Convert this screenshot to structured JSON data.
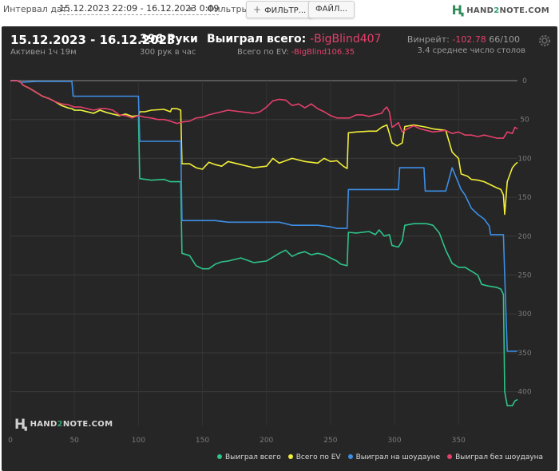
{
  "filters": {
    "interval_label": "Интервал дат:",
    "interval_value": "15.12.2023 22:09 - 16.12.2023 0:09",
    "filters_label": "Фильтры:",
    "filter_button": "ФИЛЬТР...",
    "file_button": "ФАЙЛ...",
    "brand_left": "HAND",
    "brand_two": "2",
    "brand_right": "NOTE.COM"
  },
  "summary": {
    "dates": "15.12.2023 - 16.12.2023",
    "active": "Активен 1ч 19м",
    "hands": "396 Руки",
    "per_hour": "300 рук в час",
    "won_label": "Выиграл всего:",
    "won_value": "-BigBlind407",
    "ev_label": "Всего по EV:",
    "ev_value": "-BigBlind106.35",
    "winrate_label": "Винрейт:",
    "winrate_value": "-102.78",
    "winrate_hands": "66/100",
    "avg_tables": "3.4 среднее число столов"
  },
  "watermark": {
    "left": "HAND",
    "two": "2",
    "right": "NOTE.COM"
  },
  "colors": {
    "panel": "#262626",
    "won": "#2ec48a",
    "ev": "#f2ef38",
    "showdown": "#3d8fe6",
    "nonshowdown": "#e4406b"
  },
  "chart_data": {
    "type": "line",
    "title": "",
    "xlabel": "",
    "ylabel": "",
    "xlim": [
      0,
      396
    ],
    "ylim": [
      -425,
      0
    ],
    "y_inverted_display": true,
    "x_ticks": [
      0,
      50,
      100,
      150,
      200,
      250,
      300,
      350
    ],
    "y_ticks": [
      0,
      50,
      100,
      150,
      200,
      250,
      300,
      350,
      400
    ],
    "legend_position": "bottom-right",
    "series": [
      {
        "name": "Выиграл всего",
        "color": "#2ec48a",
        "points": [
          [
            0,
            0
          ],
          [
            5,
            0
          ],
          [
            8,
            -2
          ],
          [
            10,
            -6
          ],
          [
            15,
            -10
          ],
          [
            20,
            -15
          ],
          [
            25,
            -20
          ],
          [
            30,
            -23
          ],
          [
            35,
            -27
          ],
          [
            40,
            -32
          ],
          [
            45,
            -35
          ],
          [
            48,
            -36
          ],
          [
            50,
            -38
          ],
          [
            55,
            -38
          ],
          [
            60,
            -40
          ],
          [
            65,
            -42
          ],
          [
            70,
            -38
          ],
          [
            75,
            -41
          ],
          [
            80,
            -43
          ],
          [
            85,
            -45
          ],
          [
            90,
            -43
          ],
          [
            95,
            -46
          ],
          [
            100,
            -45
          ],
          [
            101,
            -126
          ],
          [
            110,
            -128
          ],
          [
            120,
            -127
          ],
          [
            125,
            -130
          ],
          [
            126,
            -130
          ],
          [
            133,
            -130
          ],
          [
            134,
            -222
          ],
          [
            140,
            -225
          ],
          [
            145,
            -238
          ],
          [
            150,
            -242
          ],
          [
            155,
            -242
          ],
          [
            160,
            -236
          ],
          [
            165,
            -233
          ],
          [
            170,
            -232
          ],
          [
            180,
            -228
          ],
          [
            190,
            -234
          ],
          [
            200,
            -232
          ],
          [
            210,
            -222
          ],
          [
            215,
            -218
          ],
          [
            220,
            -226
          ],
          [
            225,
            -222
          ],
          [
            230,
            -220
          ],
          [
            235,
            -224
          ],
          [
            240,
            -222
          ],
          [
            245,
            -224
          ],
          [
            250,
            -228
          ],
          [
            255,
            -232
          ],
          [
            258,
            -236
          ],
          [
            263,
            -238
          ],
          [
            264,
            -195
          ],
          [
            270,
            -196
          ],
          [
            280,
            -194
          ],
          [
            285,
            -198
          ],
          [
            288,
            -192
          ],
          [
            292,
            -200
          ],
          [
            296,
            -198
          ],
          [
            298,
            -212
          ],
          [
            303,
            -214
          ],
          [
            306,
            -206
          ],
          [
            308,
            -186
          ],
          [
            315,
            -184
          ],
          [
            325,
            -184
          ],
          [
            330,
            -186
          ],
          [
            335,
            -196
          ],
          [
            340,
            -218
          ],
          [
            345,
            -235
          ],
          [
            350,
            -240
          ],
          [
            355,
            -240
          ],
          [
            360,
            -245
          ],
          [
            365,
            -250
          ],
          [
            368,
            -262
          ],
          [
            373,
            -264
          ],
          [
            380,
            -266
          ],
          [
            383,
            -268
          ],
          [
            385,
            -275
          ],
          [
            386,
            -400
          ],
          [
            388,
            -418
          ],
          [
            392,
            -418
          ],
          [
            394,
            -412
          ],
          [
            396,
            -410
          ]
        ]
      },
      {
        "name": "Всего по EV",
        "color": "#f2ef38",
        "points": [
          [
            0,
            0
          ],
          [
            5,
            0
          ],
          [
            8,
            -2
          ],
          [
            10,
            -6
          ],
          [
            15,
            -10
          ],
          [
            20,
            -15
          ],
          [
            25,
            -20
          ],
          [
            30,
            -23
          ],
          [
            35,
            -27
          ],
          [
            40,
            -32
          ],
          [
            45,
            -35
          ],
          [
            48,
            -36
          ],
          [
            50,
            -38
          ],
          [
            55,
            -38
          ],
          [
            60,
            -40
          ],
          [
            65,
            -42
          ],
          [
            70,
            -38
          ],
          [
            75,
            -41
          ],
          [
            80,
            -43
          ],
          [
            85,
            -45
          ],
          [
            90,
            -43
          ],
          [
            95,
            -46
          ],
          [
            100,
            -45
          ],
          [
            101,
            -40
          ],
          [
            105,
            -40
          ],
          [
            110,
            -38
          ],
          [
            120,
            -37
          ],
          [
            125,
            -40
          ],
          [
            126,
            -36
          ],
          [
            130,
            -36
          ],
          [
            133,
            -38
          ],
          [
            134,
            -107
          ],
          [
            140,
            -107
          ],
          [
            145,
            -112
          ],
          [
            150,
            -114
          ],
          [
            155,
            -105
          ],
          [
            160,
            -108
          ],
          [
            165,
            -110
          ],
          [
            170,
            -104
          ],
          [
            180,
            -108
          ],
          [
            190,
            -112
          ],
          [
            200,
            -110
          ],
          [
            205,
            -100
          ],
          [
            210,
            -106
          ],
          [
            220,
            -100
          ],
          [
            230,
            -104
          ],
          [
            240,
            -106
          ],
          [
            245,
            -100
          ],
          [
            250,
            -104
          ],
          [
            255,
            -103
          ],
          [
            260,
            -110
          ],
          [
            263,
            -113
          ],
          [
            264,
            -67
          ],
          [
            270,
            -66
          ],
          [
            280,
            -65
          ],
          [
            286,
            -65
          ],
          [
            290,
            -60
          ],
          [
            294,
            -57
          ],
          [
            296,
            -68
          ],
          [
            298,
            -80
          ],
          [
            302,
            -84
          ],
          [
            306,
            -80
          ],
          [
            308,
            -59
          ],
          [
            315,
            -57
          ],
          [
            325,
            -60
          ],
          [
            330,
            -62
          ],
          [
            340,
            -64
          ],
          [
            345,
            -92
          ],
          [
            350,
            -100
          ],
          [
            352,
            -120
          ],
          [
            357,
            -123
          ],
          [
            360,
            -127
          ],
          [
            365,
            -128
          ],
          [
            370,
            -130
          ],
          [
            375,
            -134
          ],
          [
            380,
            -138
          ],
          [
            383,
            -140
          ],
          [
            385,
            -147
          ],
          [
            386,
            -172
          ],
          [
            388,
            -130
          ],
          [
            390,
            -121
          ],
          [
            392,
            -112
          ],
          [
            394,
            -108
          ],
          [
            396,
            -105
          ]
        ]
      },
      {
        "name": "Выиграл на шоудауне",
        "color": "#3d8fe6",
        "points": [
          [
            0,
            0
          ],
          [
            5,
            0
          ],
          [
            8,
            -2
          ],
          [
            10,
            -2
          ],
          [
            20,
            -1
          ],
          [
            30,
            -1
          ],
          [
            48,
            -1
          ],
          [
            49,
            -20
          ],
          [
            60,
            -20
          ],
          [
            70,
            -20
          ],
          [
            100,
            -20
          ],
          [
            101,
            -78
          ],
          [
            110,
            -78
          ],
          [
            120,
            -78
          ],
          [
            133,
            -78
          ],
          [
            134,
            -180
          ],
          [
            150,
            -180
          ],
          [
            160,
            -180
          ],
          [
            170,
            -182
          ],
          [
            180,
            -182
          ],
          [
            190,
            -182
          ],
          [
            200,
            -182
          ],
          [
            210,
            -182
          ],
          [
            220,
            -186
          ],
          [
            230,
            -186
          ],
          [
            240,
            -186
          ],
          [
            250,
            -188
          ],
          [
            255,
            -190
          ],
          [
            263,
            -190
          ],
          [
            264,
            -140
          ],
          [
            270,
            -140
          ],
          [
            280,
            -140
          ],
          [
            290,
            -140
          ],
          [
            303,
            -140
          ],
          [
            304,
            -112
          ],
          [
            310,
            -112
          ],
          [
            320,
            -112
          ],
          [
            323,
            -112
          ],
          [
            324,
            -142
          ],
          [
            330,
            -142
          ],
          [
            340,
            -142
          ],
          [
            345,
            -112
          ],
          [
            350,
            -132
          ],
          [
            352,
            -140
          ],
          [
            355,
            -147
          ],
          [
            360,
            -164
          ],
          [
            365,
            -172
          ],
          [
            370,
            -178
          ],
          [
            374,
            -187
          ],
          [
            375,
            -198
          ],
          [
            380,
            -198
          ],
          [
            385,
            -198
          ],
          [
            386,
            -250
          ],
          [
            388,
            -348
          ],
          [
            396,
            -348
          ]
        ]
      },
      {
        "name": "Выиграл без шоудауна",
        "color": "#e4406b",
        "points": [
          [
            0,
            0
          ],
          [
            5,
            0
          ],
          [
            8,
            -2
          ],
          [
            10,
            -6
          ],
          [
            15,
            -10
          ],
          [
            20,
            -15
          ],
          [
            25,
            -20
          ],
          [
            30,
            -23
          ],
          [
            35,
            -27
          ],
          [
            40,
            -30
          ],
          [
            45,
            -31
          ],
          [
            50,
            -34
          ],
          [
            55,
            -34
          ],
          [
            60,
            -36
          ],
          [
            65,
            -38
          ],
          [
            70,
            -36
          ],
          [
            75,
            -36
          ],
          [
            80,
            -38
          ],
          [
            85,
            -44
          ],
          [
            90,
            -45
          ],
          [
            95,
            -48
          ],
          [
            100,
            -45
          ],
          [
            105,
            -47
          ],
          [
            110,
            -48
          ],
          [
            115,
            -50
          ],
          [
            120,
            -50
          ],
          [
            125,
            -52
          ],
          [
            130,
            -55
          ],
          [
            135,
            -53
          ],
          [
            140,
            -52
          ],
          [
            145,
            -48
          ],
          [
            150,
            -47
          ],
          [
            155,
            -44
          ],
          [
            160,
            -42
          ],
          [
            165,
            -40
          ],
          [
            170,
            -38
          ],
          [
            180,
            -40
          ],
          [
            190,
            -42
          ],
          [
            195,
            -40
          ],
          [
            200,
            -34
          ],
          [
            205,
            -26
          ],
          [
            210,
            -24
          ],
          [
            215,
            -25
          ],
          [
            220,
            -32
          ],
          [
            225,
            -30
          ],
          [
            230,
            -35
          ],
          [
            235,
            -30
          ],
          [
            240,
            -36
          ],
          [
            245,
            -40
          ],
          [
            250,
            -45
          ],
          [
            255,
            -48
          ],
          [
            260,
            -48
          ],
          [
            265,
            -48
          ],
          [
            270,
            -44
          ],
          [
            275,
            -44
          ],
          [
            280,
            -46
          ],
          [
            285,
            -44
          ],
          [
            290,
            -42
          ],
          [
            292,
            -37
          ],
          [
            294,
            -34
          ],
          [
            296,
            -40
          ],
          [
            298,
            -60
          ],
          [
            300,
            -58
          ],
          [
            303,
            -54
          ],
          [
            306,
            -66
          ],
          [
            310,
            -62
          ],
          [
            315,
            -58
          ],
          [
            320,
            -62
          ],
          [
            325,
            -64
          ],
          [
            330,
            -66
          ],
          [
            340,
            -64
          ],
          [
            345,
            -68
          ],
          [
            350,
            -66
          ],
          [
            355,
            -70
          ],
          [
            360,
            -70
          ],
          [
            365,
            -72
          ],
          [
            370,
            -70
          ],
          [
            375,
            -72
          ],
          [
            380,
            -74
          ],
          [
            385,
            -74
          ],
          [
            388,
            -66
          ],
          [
            392,
            -68
          ],
          [
            394,
            -60
          ],
          [
            396,
            -62
          ]
        ]
      }
    ]
  }
}
